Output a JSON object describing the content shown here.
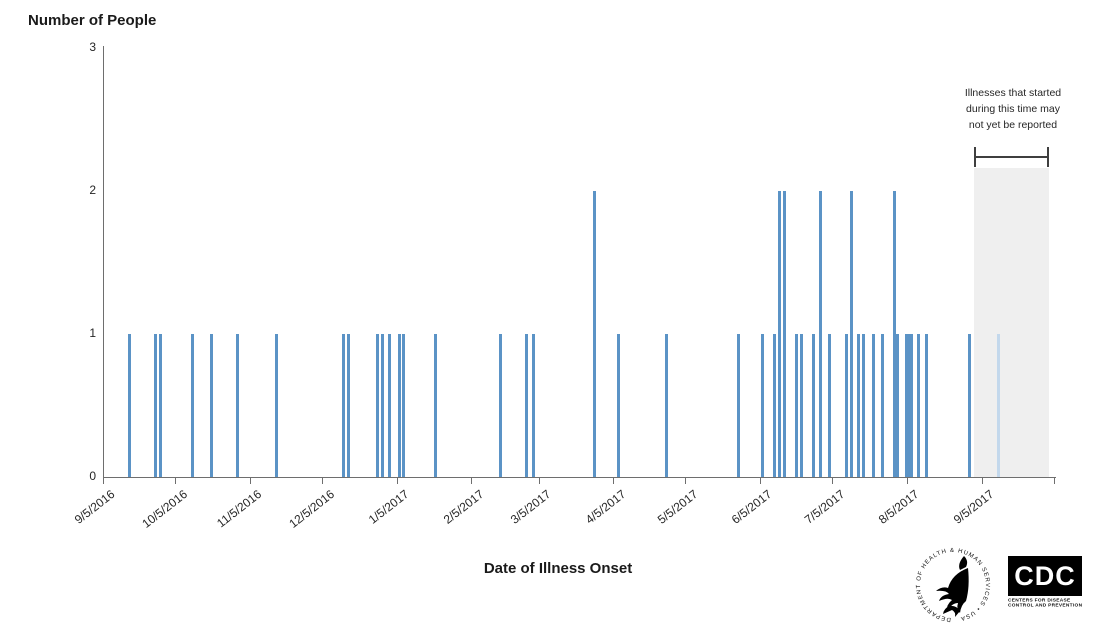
{
  "chart_data": {
    "type": "bar",
    "title": "Number of People",
    "xlabel": "Date of Illness Onset",
    "ylabel": "Number of People",
    "ylim": [
      0,
      3
    ],
    "yticks": [
      0,
      1,
      2,
      3
    ],
    "grid": false,
    "legend": false,
    "bar_color": "#5b93c6",
    "pending_bar_color": "#c3d8ec",
    "shaded_region_color": "#efefef",
    "x_axis_start": "9/5/2016",
    "x_axis_end": "10/5/2017",
    "xticks": [
      "9/5/2016",
      "10/5/2016",
      "11/5/2016",
      "12/5/2016",
      "1/5/2017",
      "2/5/2017",
      "3/5/2017",
      "4/5/2017",
      "5/5/2017",
      "6/5/2017",
      "7/5/2017",
      "8/5/2017",
      "9/5/2017"
    ],
    "xticks_unlabeled": [
      "10/5/2017"
    ],
    "points": [
      {
        "date": "9/16/2016",
        "count": 1
      },
      {
        "date": "9/27/2016",
        "count": 1
      },
      {
        "date": "9/29/2016",
        "count": 1
      },
      {
        "date": "10/12/2016",
        "count": 1
      },
      {
        "date": "10/20/2016",
        "count": 1
      },
      {
        "date": "10/31/2016",
        "count": 1
      },
      {
        "date": "11/16/2016",
        "count": 1
      },
      {
        "date": "12/14/2016",
        "count": 1
      },
      {
        "date": "12/16/2016",
        "count": 1
      },
      {
        "date": "12/28/2016",
        "count": 1
      },
      {
        "date": "12/30/2016",
        "count": 1
      },
      {
        "date": "1/2/2017",
        "count": 1
      },
      {
        "date": "1/6/2017",
        "count": 1
      },
      {
        "date": "1/8/2017",
        "count": 1
      },
      {
        "date": "1/21/2017",
        "count": 1
      },
      {
        "date": "2/17/2017",
        "count": 1
      },
      {
        "date": "2/28/2017",
        "count": 1
      },
      {
        "date": "3/3/2017",
        "count": 1
      },
      {
        "date": "3/28/2017",
        "count": 2
      },
      {
        "date": "4/7/2017",
        "count": 1
      },
      {
        "date": "4/27/2017",
        "count": 1
      },
      {
        "date": "5/27/2017",
        "count": 1
      },
      {
        "date": "6/6/2017",
        "count": 1
      },
      {
        "date": "6/11/2017",
        "count": 1
      },
      {
        "date": "6/13/2017",
        "count": 2
      },
      {
        "date": "6/15/2017",
        "count": 2
      },
      {
        "date": "6/20/2017",
        "count": 1
      },
      {
        "date": "6/22/2017",
        "count": 1
      },
      {
        "date": "6/27/2017",
        "count": 1
      },
      {
        "date": "6/30/2017",
        "count": 2
      },
      {
        "date": "7/4/2017",
        "count": 1
      },
      {
        "date": "7/11/2017",
        "count": 1
      },
      {
        "date": "7/13/2017",
        "count": 2
      },
      {
        "date": "7/16/2017",
        "count": 1
      },
      {
        "date": "7/18/2017",
        "count": 1
      },
      {
        "date": "7/22/2017",
        "count": 1
      },
      {
        "date": "7/26/2017",
        "count": 1
      },
      {
        "date": "7/31/2017",
        "count": 2
      },
      {
        "date": "8/1/2017",
        "count": 1
      },
      {
        "date": "8/5/2017",
        "count": 1
      },
      {
        "date": "8/6/2017",
        "count": 1
      },
      {
        "date": "8/7/2017",
        "count": 1
      },
      {
        "date": "8/10/2017",
        "count": 1
      },
      {
        "date": "8/13/2017",
        "count": 1
      },
      {
        "date": "8/31/2017",
        "count": 1
      },
      {
        "date": "9/12/2017",
        "count": 1,
        "pending": true
      }
    ],
    "shaded_region": {
      "start": "9/2/2017",
      "end": "10/3/2017"
    }
  },
  "annotation": {
    "lines": [
      "Illnesses that started",
      "during this time may",
      "not yet  be reported"
    ]
  },
  "footer": {
    "hhs_logo_text": "DEPARTMENT OF HEALTH & HUMAN SERVICES • USA",
    "cdc_logo": {
      "acronym": "CDC",
      "line1": "CENTERS FOR DISEASE",
      "line2": "CONTROL AND PREVENTION"
    }
  }
}
